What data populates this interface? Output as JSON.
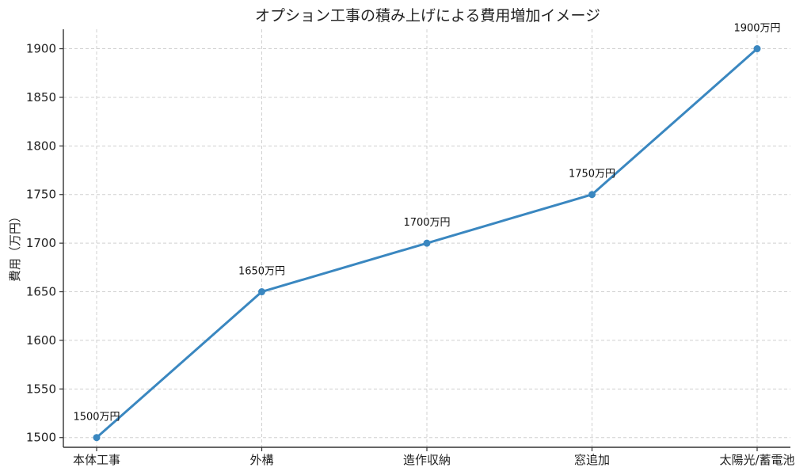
{
  "chart_data": {
    "type": "line",
    "title": "オプション工事の積み上げによる費用増加イメージ",
    "xlabel": "",
    "ylabel": "費用（万円）",
    "categories": [
      "本体工事",
      "外構",
      "造作収納",
      "窓追加",
      "太陽光/蓄電池"
    ],
    "series": [
      {
        "values": [
          1500,
          1650,
          1700,
          1750,
          1900
        ],
        "labels": [
          "1500万円",
          "1650万円",
          "1700万円",
          "1750万円",
          "1900万円"
        ],
        "color": "#3a87c0"
      }
    ],
    "ylim": [
      1490,
      1920
    ],
    "yticks": [
      1500,
      1550,
      1600,
      1650,
      1700,
      1750,
      1800,
      1850,
      1900
    ],
    "grid": true,
    "legend": "none"
  }
}
